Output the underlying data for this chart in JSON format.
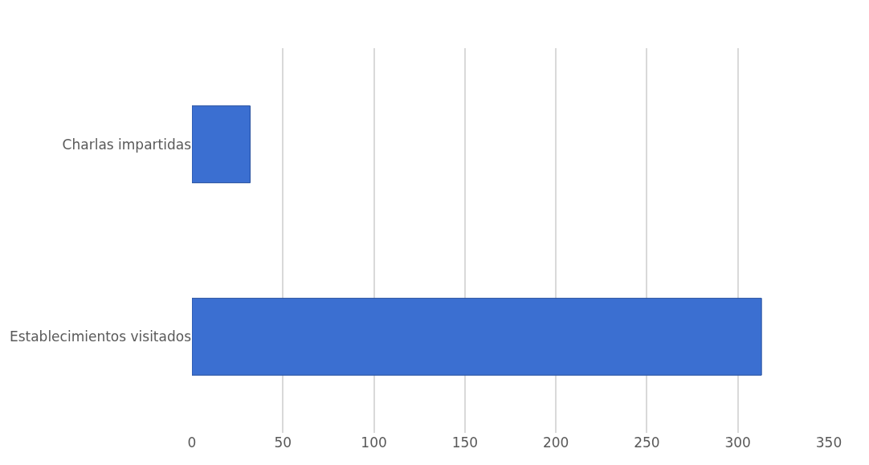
{
  "chart_data": {
    "type": "bar",
    "orientation": "horizontal",
    "categories": [
      "Charlas impartidas",
      "Establecimientos visitados"
    ],
    "values": [
      32,
      313
    ],
    "color": "#3b6fd1",
    "xlim": [
      0,
      350
    ],
    "xticks": [
      0,
      50,
      100,
      150,
      200,
      250,
      300,
      350
    ],
    "grid": "x"
  }
}
